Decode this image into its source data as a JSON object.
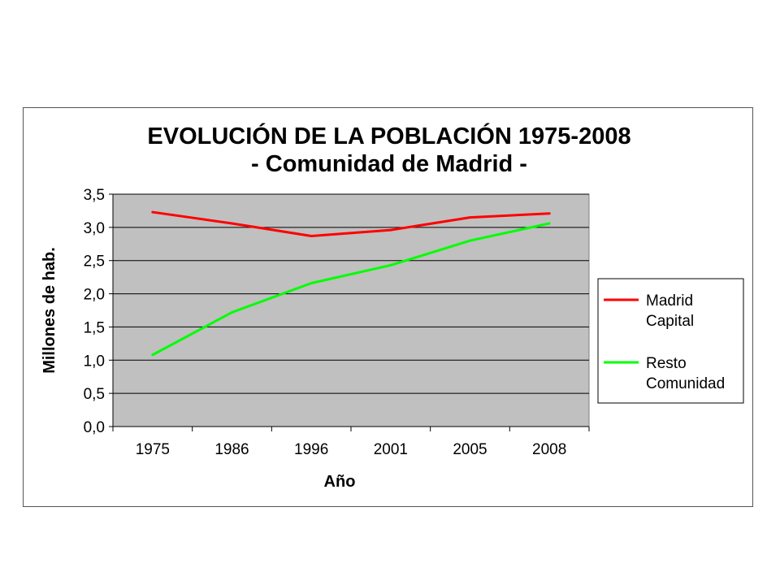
{
  "chart_data": {
    "type": "line",
    "title": "EVOLUCIÓN DE LA POBLACIÓN 1975-2008",
    "subtitle": "- Comunidad de Madrid -",
    "xlabel": "Año",
    "ylabel": "Millones de hab.",
    "categories": [
      "1975",
      "1986",
      "1996",
      "2001",
      "2005",
      "2008"
    ],
    "ylim": [
      0,
      3.5
    ],
    "yticks": [
      0,
      0.5,
      1.0,
      1.5,
      2.0,
      2.5,
      3.0,
      3.5
    ],
    "ytick_labels": [
      "0,0",
      "0,5",
      "1,0",
      "1,5",
      "2,0",
      "2,5",
      "3,0",
      "3,5"
    ],
    "grid": true,
    "legend_position": "right",
    "plot_background": "#c0c0c0",
    "series": [
      {
        "name_line1": "Madrid",
        "name_line2": "Capital",
        "color": "#ff0000",
        "values": [
          3.23,
          3.06,
          2.87,
          2.96,
          3.15,
          3.21
        ]
      },
      {
        "name_line1": "Resto",
        "name_line2": "Comunidad",
        "color": "#00ff00",
        "values": [
          1.08,
          1.72,
          2.16,
          2.43,
          2.8,
          3.06
        ]
      }
    ]
  }
}
